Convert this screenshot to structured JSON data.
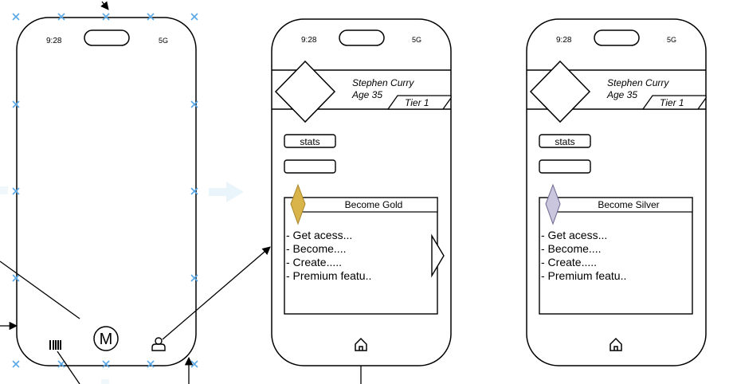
{
  "colors": {
    "handle": "#5aa9e6",
    "gold": "#d9b44a",
    "silver": "#c9c6dd",
    "stroke": "#000000"
  },
  "phone1": {
    "status_time": "9:28",
    "status_network": "5G",
    "nav_left_icon": "barcode-icon",
    "nav_center_label": "M",
    "nav_right_icon": "person-icon"
  },
  "phone2": {
    "status_time": "9:28",
    "status_network": "5G",
    "profile_name": "Stephen Curry",
    "profile_age": "Age 35",
    "tier": "Tier 1",
    "stats_button": "stats",
    "plan_title": "Become Gold",
    "plan_features": [
      "- Get acess...",
      "- Become....",
      "- Create.....",
      "- Premium featu.."
    ],
    "nav_icon": "home-icon"
  },
  "phone3": {
    "status_time": "9:28",
    "status_network": "5G",
    "profile_name": "Stephen Curry",
    "profile_age": "Age 35",
    "tier": "Tier 1",
    "stats_button": "stats",
    "plan_title": "Become Silver",
    "plan_features": [
      "- Get acess...",
      "- Become....",
      "- Create.....",
      "- Premium featu.."
    ],
    "nav_icon": "home-icon"
  }
}
